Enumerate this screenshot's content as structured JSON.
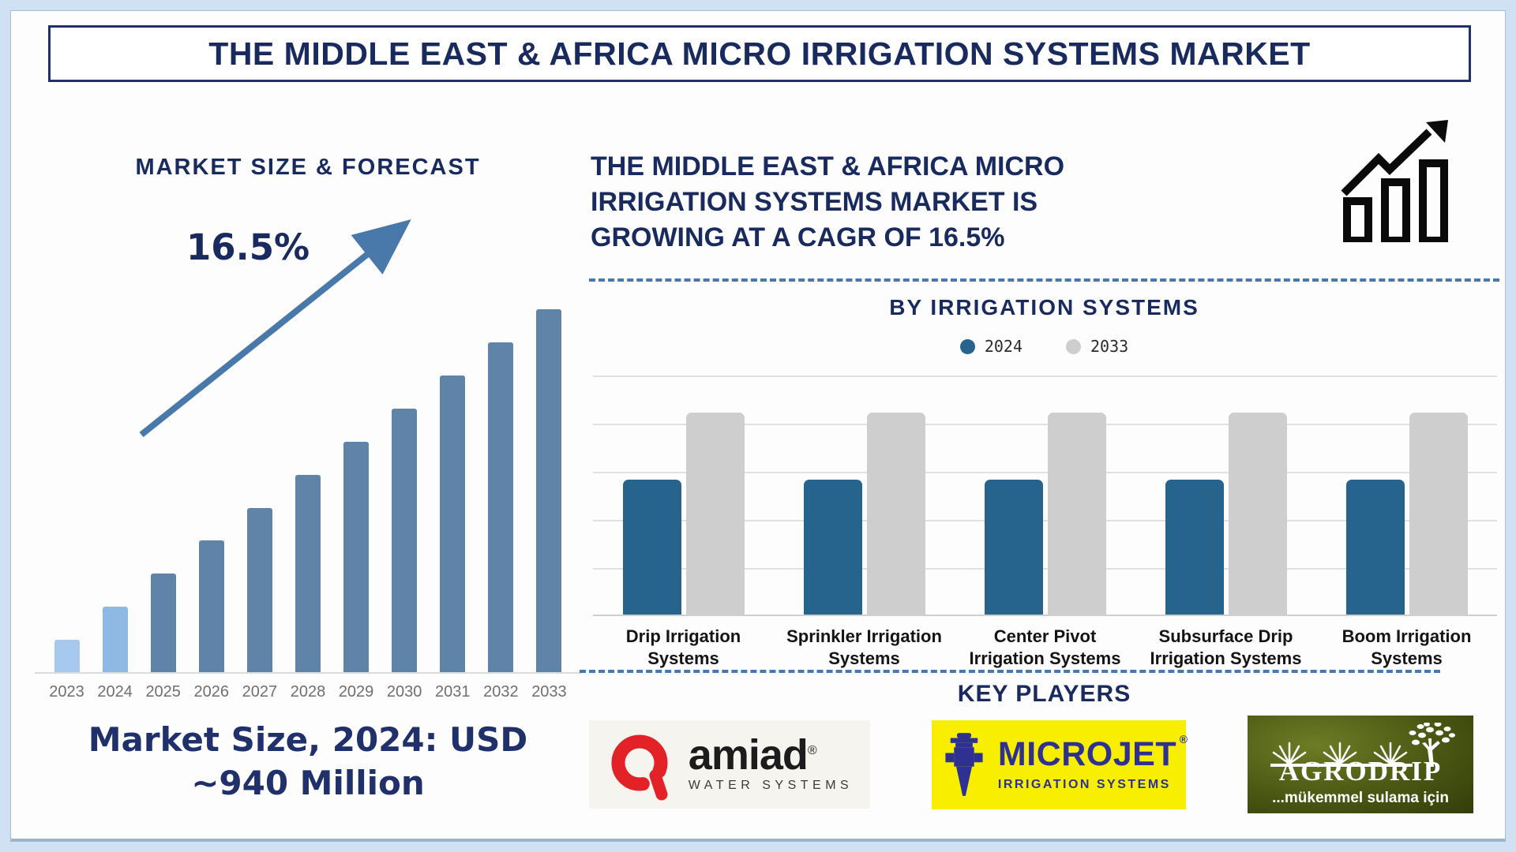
{
  "title": "THE MIDDLE EAST & AFRICA MICRO IRRIGATION SYSTEMS MARKET",
  "left_panel": {
    "heading": "MARKET SIZE & FORECAST",
    "cagr_label": "16.5%",
    "market_size_note_line1": "Market Size, 2024: USD",
    "market_size_note_line2": "~940 Million"
  },
  "right_panel": {
    "headline_lines": [
      "THE MIDDLE EAST & AFRICA MICRO",
      "IRRIGATION SYSTEMS MARKET IS",
      "GROWING AT A CAGR OF 16.5%"
    ],
    "section_heading": "BY IRRIGATION SYSTEMS",
    "key_players_heading": "KEY PLAYERS"
  },
  "logos": {
    "amiad": {
      "name": "amiad",
      "reg": "®",
      "subtitle": "WATER SYSTEMS"
    },
    "microjet": {
      "name": "MICROJET",
      "reg": "®",
      "subtitle": "IRRIGATION SYSTEMS"
    },
    "agrodrip": {
      "name": "AGRODRIP",
      "tagline": "...mükemmel sulama için"
    }
  },
  "colors": {
    "navy_text": "#192a5e",
    "outer_border_blue": "#cfe1f3",
    "forecast_bar_steel": "#5f84a7",
    "forecast_bar_light_2023": "#a6c9ed",
    "forecast_bar_light_2024": "#8db9e2",
    "trend_arrow_blue": "#4879aa",
    "dashed_line_blue": "#4879aa",
    "series_2024_blue": "#26648e",
    "series_2033_gray": "#cecece",
    "gridline_gray": "#e0e0e0",
    "year_label_gray": "#6f6f6f",
    "amiad_red": "#e32228",
    "microjet_yellow": "#f8ee00",
    "microjet_navy": "#2e3192",
    "agrodrip_green": "#4a5713"
  },
  "chart_data": [
    {
      "id": "market-size-forecast",
      "type": "bar",
      "title": "MARKET SIZE & FORECAST",
      "categories": [
        "2023",
        "2024",
        "2025",
        "2026",
        "2027",
        "2028",
        "2029",
        "2030",
        "2031",
        "2032",
        "2033"
      ],
      "values": [
        0.091,
        0.182,
        0.273,
        0.364,
        0.453,
        0.544,
        0.636,
        0.727,
        0.818,
        0.909,
        1.0
      ],
      "value_note": "relative bar heights (2033 bar = 1.0); no numeric y-axis shown; only labeled figure is 2024 = USD ~940 Million; market grows at 16.5% CAGR",
      "xlabel": "",
      "ylabel": "",
      "grid": false,
      "bar_colors": [
        "#a6c9ed",
        "#8db9e2",
        "#5f84a7",
        "#5f84a7",
        "#5f84a7",
        "#5f84a7",
        "#5f84a7",
        "#5f84a7",
        "#5f84a7",
        "#5f84a7",
        "#5f84a7"
      ],
      "annotations": [
        "16.5% with upward trend arrow",
        "Market Size, 2024: USD ~940 Million"
      ]
    },
    {
      "id": "by-irrigation-systems",
      "type": "bar",
      "grouped": true,
      "title": "BY IRRIGATION SYSTEMS",
      "categories": [
        "Drip Irrigation Systems",
        "Sprinkler Irrigation Systems",
        "Center Pivot Irrigation Systems",
        "Subsurface Drip Irrigation Systems",
        "Boom Irrigation Systems"
      ],
      "category_label_lines": [
        [
          "Drip Irrigation",
          "Systems"
        ],
        [
          "Sprinkler Irrigation",
          "Systems"
        ],
        [
          "Center Pivot",
          "Irrigation Systems"
        ],
        [
          "Subsurface Drip",
          "Irrigation Systems"
        ],
        [
          "Boom Irrigation",
          "Systems"
        ]
      ],
      "series": [
        {
          "name": "2024",
          "color": "#26648e",
          "values": [
            0.56,
            0.56,
            0.56,
            0.56,
            0.56
          ]
        },
        {
          "name": "2033",
          "color": "#cecece",
          "values": [
            0.84,
            0.84,
            0.84,
            0.84,
            0.84
          ]
        }
      ],
      "value_note": "relative bar heights; no numeric axis or data labels shown; 2033 bars uniformly taller than 2024 bars",
      "legend_position": "top",
      "grid": "horizontal"
    }
  ]
}
